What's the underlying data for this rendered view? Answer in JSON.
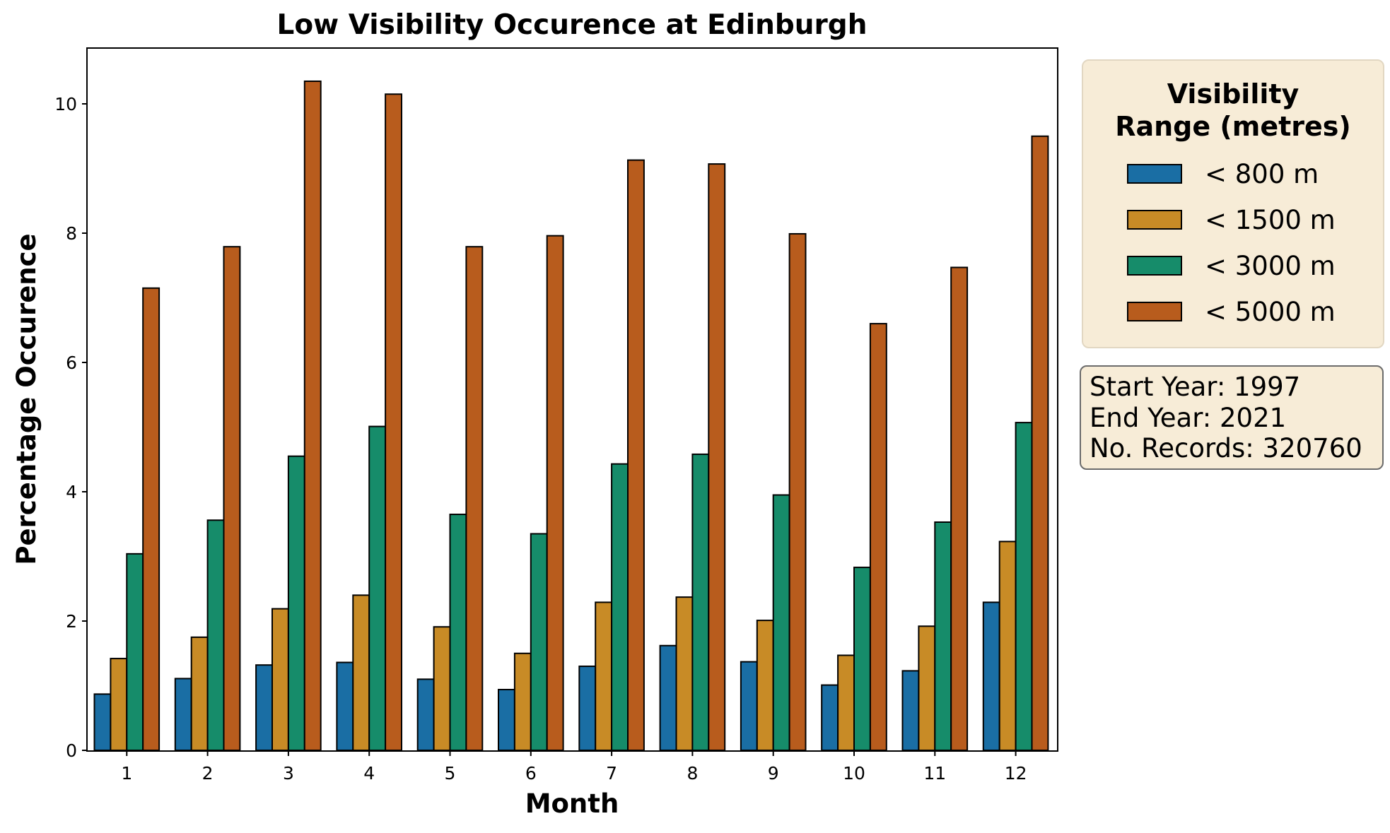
{
  "chart_data": {
    "type": "bar",
    "title": "Low Visibility Occurence at Edinburgh",
    "xlabel": "Month",
    "ylabel": "Percentage Occurence",
    "categories": [
      "1",
      "2",
      "3",
      "4",
      "5",
      "6",
      "7",
      "8",
      "9",
      "10",
      "11",
      "12"
    ],
    "ylim": [
      0,
      10.9
    ],
    "yticks": [
      "0",
      "2",
      "4",
      "6",
      "8",
      "10"
    ],
    "grid": false,
    "legend_position": "outside-right",
    "series": [
      {
        "name": "< 800 m",
        "color": "#1a6ea4",
        "values": [
          0.87,
          1.11,
          1.32,
          1.36,
          1.1,
          0.94,
          1.3,
          1.62,
          1.37,
          1.01,
          1.23,
          2.29
        ]
      },
      {
        "name": "< 1500 m",
        "color": "#c88b26",
        "values": [
          1.42,
          1.75,
          2.19,
          2.4,
          1.91,
          1.5,
          2.29,
          2.37,
          2.01,
          1.47,
          1.92,
          3.23
        ]
      },
      {
        "name": "< 3000 m",
        "color": "#168c6a",
        "values": [
          3.04,
          3.56,
          4.55,
          5.01,
          3.65,
          3.35,
          4.43,
          4.58,
          3.95,
          2.83,
          3.53,
          5.07
        ]
      },
      {
        "name": "< 5000 m",
        "color": "#b85c1d",
        "values": [
          7.15,
          7.79,
          10.35,
          10.15,
          7.79,
          7.96,
          9.13,
          9.07,
          7.99,
          6.6,
          7.47,
          9.5
        ]
      }
    ]
  },
  "legend": {
    "title_line1": "Visibility",
    "title_line2": "Range (metres)",
    "items": [
      {
        "label": "< 800 m",
        "color": "#1a6ea4"
      },
      {
        "label": "< 1500 m",
        "color": "#c88b26"
      },
      {
        "label": "< 3000 m",
        "color": "#168c6a"
      },
      {
        "label": "< 5000 m",
        "color": "#b85c1d"
      }
    ]
  },
  "info": {
    "start_year": "Start Year: 1997",
    "end_year": "End Year: 2021",
    "records": "No. Records: 320760"
  }
}
